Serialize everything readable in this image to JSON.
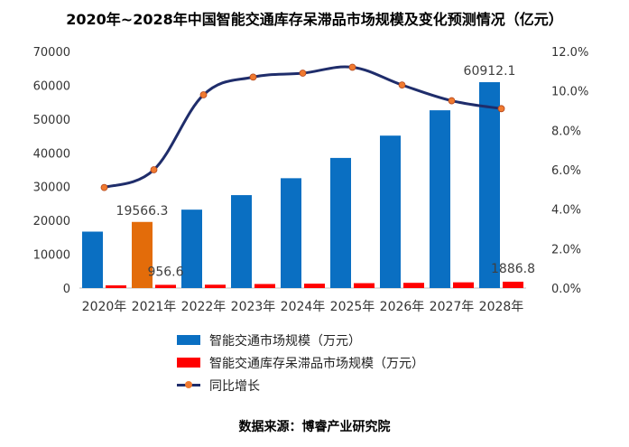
{
  "title": "2020年~2028年中国智能交通库存呆滞品市场规模及变化预测情况（亿元）",
  "source": "数据来源：博睿产业研究院",
  "legend": {
    "series1": "智能交通市场规模（万元）",
    "series2": "智能交通库存呆滞品市场规模（万元）",
    "series3": "同比增长"
  },
  "colors": {
    "market": "#0a6fc2",
    "highlight": "#e36c0a",
    "inventory": "#ff0000",
    "growth_line": "#1f2d6b",
    "growth_marker": "#f07a30"
  },
  "chart_data": {
    "type": "bar",
    "categories": [
      "2020年",
      "2021年",
      "2022年",
      "2023年",
      "2024年",
      "2025年",
      "2026年",
      "2027年",
      "2028年"
    ],
    "series": [
      {
        "name": "智能交通市场规模（万元）",
        "type": "bar",
        "axis": "left",
        "values": [
          16700,
          19566.3,
          23200,
          27500,
          32500,
          38500,
          45100,
          52600,
          60912.1
        ]
      },
      {
        "name": "智能交通库存呆滞品市场规模（万元）",
        "type": "bar",
        "axis": "left",
        "values": [
          800,
          956.6,
          1000,
          1200,
          1300,
          1450,
          1550,
          1700,
          1886.8
        ]
      },
      {
        "name": "同比增长",
        "type": "line",
        "axis": "right",
        "values": [
          5.1,
          6.0,
          9.8,
          10.7,
          10.9,
          11.2,
          10.3,
          9.5,
          9.1
        ]
      }
    ],
    "data_labels": [
      {
        "series": 0,
        "index": 1,
        "text": "19566.3"
      },
      {
        "series": 1,
        "index": 1,
        "text": "956.6"
      },
      {
        "series": 0,
        "index": 8,
        "text": "60912.1"
      },
      {
        "series": 1,
        "index": 8,
        "text": "1886.8"
      }
    ],
    "highlight_index": 1,
    "y_left": {
      "min": 0,
      "max": 70000,
      "ticks": [
        "0",
        "10000",
        "20000",
        "30000",
        "40000",
        "50000",
        "60000",
        "70000"
      ]
    },
    "y_right": {
      "min": 0,
      "max": 12,
      "ticks": [
        "0.0%",
        "2.0%",
        "4.0%",
        "6.0%",
        "8.0%",
        "10.0%",
        "12.0%"
      ]
    },
    "grid": false,
    "legend_position": "bottom"
  }
}
